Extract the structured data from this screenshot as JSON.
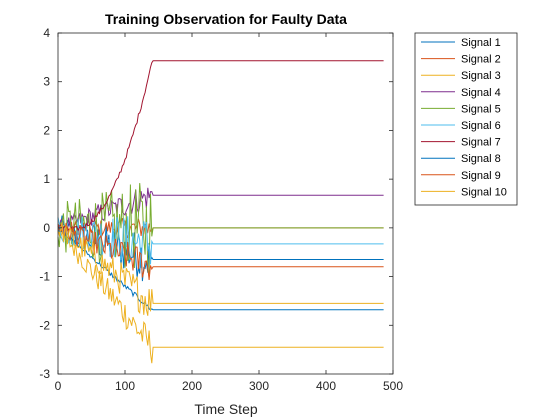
{
  "chart_data": {
    "type": "line",
    "title": "Training Observation for Faulty Data",
    "xlabel": "Time Step",
    "ylabel": "",
    "xlim": [
      0,
      500
    ],
    "ylim": [
      -3,
      4
    ],
    "xticks": [
      0,
      100,
      200,
      300,
      400,
      500
    ],
    "yticks": [
      -3,
      -2,
      -1,
      0,
      1,
      2,
      3,
      4
    ],
    "grid": false,
    "legend_position": "outside-top-right",
    "fault_end_step": 140,
    "series": [
      {
        "name": "Signal 1",
        "color": "#0072BD",
        "settled_value": -0.65,
        "noise_amplitude": 0.45
      },
      {
        "name": "Signal 2",
        "color": "#D95319",
        "settled_value": 0.0,
        "noise_amplitude": 0.2
      },
      {
        "name": "Signal 3",
        "color": "#EDB120",
        "settled_value": -2.45,
        "noise_amplitude": 0.3
      },
      {
        "name": "Signal 4",
        "color": "#7E2F8E",
        "settled_value": 0.67,
        "noise_amplitude": 0.25
      },
      {
        "name": "Signal 5",
        "color": "#77AC30",
        "settled_value": 0.0,
        "noise_amplitude": 0.85
      },
      {
        "name": "Signal 6",
        "color": "#4DBEEE",
        "settled_value": -0.33,
        "noise_amplitude": 0.5
      },
      {
        "name": "Signal 7",
        "color": "#A2142F",
        "settled_value": 3.43,
        "noise_amplitude": 0.05
      },
      {
        "name": "Signal 8",
        "color": "#0072BD",
        "settled_value": -1.68,
        "noise_amplitude": 0.05
      },
      {
        "name": "Signal 9",
        "color": "#D95319",
        "settled_value": -0.8,
        "noise_amplitude": 0.3
      },
      {
        "name": "Signal 10",
        "color": "#EDB120",
        "settled_value": -1.55,
        "noise_amplitude": 0.35
      }
    ]
  }
}
